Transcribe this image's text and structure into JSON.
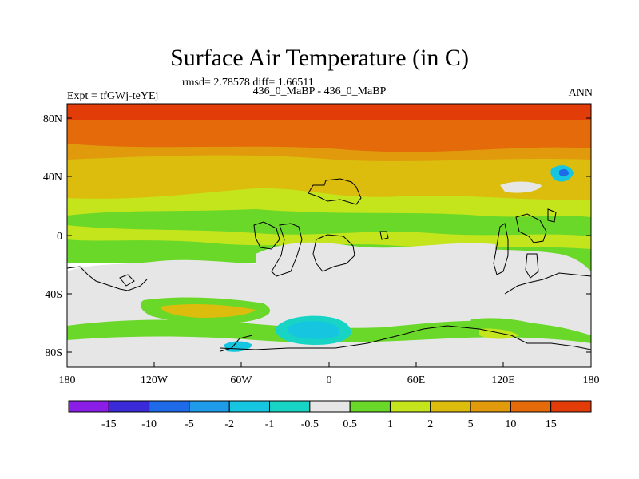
{
  "header": {
    "title": "Surface Air Temperature (in C)",
    "stats": "rmsd= 2.78578  diff= 1.66511",
    "subtitle": "436_0_MaBP - 436_0_MaBP",
    "expt": "Expt = tfGWj-teYEj",
    "season": "ANN"
  },
  "chart_data": {
    "type": "heatmap",
    "title": "Surface Air Temperature (in C)",
    "x_ticks": [
      "180",
      "120W",
      "60W",
      "0",
      "60E",
      "120E",
      "180"
    ],
    "x_tick_values": [
      -180,
      -120,
      -60,
      0,
      60,
      120,
      180
    ],
    "y_ticks": [
      "80N",
      "40N",
      "0",
      "40S",
      "80S"
    ],
    "y_tick_values": [
      80,
      40,
      0,
      -40,
      -80
    ],
    "xlim": [
      -180,
      180
    ],
    "ylim": [
      -90,
      90
    ],
    "colorbar": {
      "labels": [
        "-15",
        "-10",
        "-5",
        "-2",
        "-1",
        "-0.5",
        "0.5",
        "1",
        "2",
        "5",
        "10",
        "15"
      ],
      "bin_colors": [
        "#8a1ee6",
        "#3a2ad8",
        "#1e6ae8",
        "#1e9cea",
        "#16c6e0",
        "#18d4c4",
        "#e6e6e6",
        "#6ad828",
        "#c4e41c",
        "#dcbc0c",
        "#e09a0c",
        "#e46a0a",
        "#e23c08"
      ]
    },
    "zones": [
      {
        "latitude_range": [
          60,
          90
        ],
        "level": "10 to 15 / >15"
      },
      {
        "latitude_range": [
          40,
          60
        ],
        "level": "5 to 10"
      },
      {
        "latitude_range": [
          10,
          40
        ],
        "level": "2 to 5"
      },
      {
        "latitude_range": [
          -20,
          10
        ],
        "level": "1 to 2"
      },
      {
        "latitude_range": [
          -90,
          -20
        ],
        "level": "-0.5 to 0.5"
      }
    ],
    "grid": false
  }
}
